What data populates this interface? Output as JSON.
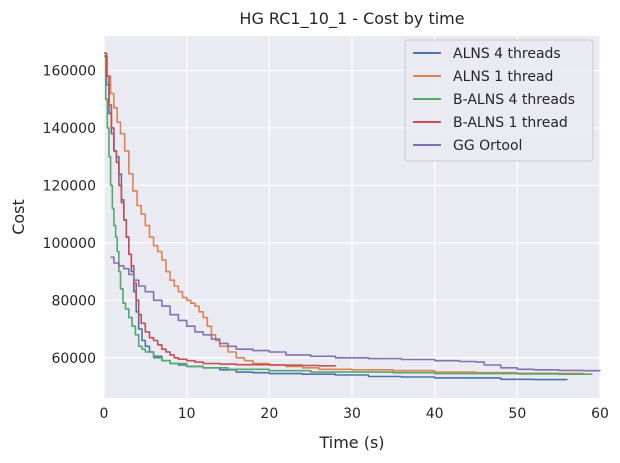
{
  "chart_data": {
    "type": "line",
    "title": "HG RC1_10_1 - Cost by time",
    "xlabel": "Time (s)",
    "ylabel": "Cost",
    "xlim": [
      0,
      60
    ],
    "ylim": [
      46000,
      172000
    ],
    "xticks": [
      0,
      10,
      20,
      30,
      40,
      50,
      60
    ],
    "yticks": [
      60000,
      80000,
      100000,
      120000,
      140000,
      160000
    ],
    "grid": true,
    "legend_position": "top-right",
    "series": [
      {
        "name": "ALNS 4 threads",
        "color": "#4c72b0",
        "points": [
          [
            0,
            165000
          ],
          [
            0.3,
            155000
          ],
          [
            0.6,
            145000
          ],
          [
            0.9,
            138000
          ],
          [
            1.2,
            132000
          ],
          [
            1.5,
            130000
          ],
          [
            1.8,
            124000
          ],
          [
            2.1,
            115000
          ],
          [
            2.4,
            108000
          ],
          [
            2.7,
            102000
          ],
          [
            3.0,
            96000
          ],
          [
            3.3,
            90000
          ],
          [
            3.6,
            83000
          ],
          [
            3.9,
            76000
          ],
          [
            4.2,
            70000
          ],
          [
            4.6,
            66000
          ],
          [
            5.0,
            64000
          ],
          [
            5.5,
            62000
          ],
          [
            6,
            60500
          ],
          [
            7,
            59000
          ],
          [
            8,
            58000
          ],
          [
            9,
            57500
          ],
          [
            10,
            57000
          ],
          [
            12,
            56500
          ],
          [
            14,
            55800
          ],
          [
            16,
            55000
          ],
          [
            18,
            54800
          ],
          [
            20,
            54500
          ],
          [
            24,
            54300
          ],
          [
            28,
            54000
          ],
          [
            32,
            53500
          ],
          [
            36,
            53300
          ],
          [
            40,
            53000
          ],
          [
            44,
            53000
          ],
          [
            48,
            52500
          ],
          [
            52,
            52400
          ],
          [
            56,
            52200
          ]
        ]
      },
      {
        "name": "ALNS 1 thread",
        "color": "#dd8452",
        "points": [
          [
            0,
            165000
          ],
          [
            0.4,
            158000
          ],
          [
            0.8,
            152000
          ],
          [
            1.2,
            147000
          ],
          [
            1.6,
            142000
          ],
          [
            2.0,
            138000
          ],
          [
            2.5,
            132000
          ],
          [
            3.0,
            124000
          ],
          [
            3.5,
            118000
          ],
          [
            4.0,
            113000
          ],
          [
            4.5,
            110000
          ],
          [
            5.0,
            106000
          ],
          [
            5.5,
            102000
          ],
          [
            6.0,
            99000
          ],
          [
            6.5,
            97000
          ],
          [
            7.0,
            94000
          ],
          [
            7.5,
            90000
          ],
          [
            8.0,
            87000
          ],
          [
            8.5,
            85000
          ],
          [
            9.0,
            83000
          ],
          [
            9.5,
            81000
          ],
          [
            10,
            80000
          ],
          [
            10.5,
            79000
          ],
          [
            11,
            78000
          ],
          [
            11.5,
            76000
          ],
          [
            12,
            74000
          ],
          [
            12.5,
            71000
          ],
          [
            13,
            68000
          ],
          [
            13.5,
            66000
          ],
          [
            14,
            64000
          ],
          [
            15,
            62000
          ],
          [
            16,
            60000
          ],
          [
            17,
            59000
          ],
          [
            18,
            58000
          ],
          [
            20,
            57500
          ],
          [
            22,
            57000
          ],
          [
            24,
            56500
          ],
          [
            26,
            56000
          ],
          [
            30,
            55800
          ],
          [
            35,
            55500
          ],
          [
            40,
            55000
          ],
          [
            45,
            54800
          ],
          [
            50,
            54600
          ],
          [
            55,
            54500
          ],
          [
            58,
            54400
          ]
        ]
      },
      {
        "name": "B-ALNS 4 threads",
        "color": "#55a868",
        "points": [
          [
            0,
            165000
          ],
          [
            0.2,
            150000
          ],
          [
            0.4,
            140000
          ],
          [
            0.6,
            130000
          ],
          [
            0.8,
            120000
          ],
          [
            1.0,
            112000
          ],
          [
            1.2,
            106000
          ],
          [
            1.4,
            102000
          ],
          [
            1.6,
            97000
          ],
          [
            1.8,
            90000
          ],
          [
            2.0,
            84000
          ],
          [
            2.3,
            79000
          ],
          [
            2.6,
            77000
          ],
          [
            3.0,
            74000
          ],
          [
            3.4,
            71000
          ],
          [
            3.8,
            68000
          ],
          [
            4.2,
            64000
          ],
          [
            4.6,
            63000
          ],
          [
            5.0,
            62000
          ],
          [
            6,
            60000
          ],
          [
            7,
            59000
          ],
          [
            8,
            58000
          ],
          [
            10,
            57000
          ],
          [
            12,
            56500
          ],
          [
            15,
            56000
          ],
          [
            20,
            55500
          ],
          [
            25,
            55000
          ],
          [
            30,
            55000
          ],
          [
            35,
            54800
          ],
          [
            40,
            54500
          ],
          [
            45,
            54500
          ],
          [
            50,
            54400
          ],
          [
            55,
            54300
          ],
          [
            59,
            54200
          ]
        ]
      },
      {
        "name": "B-ALNS 1 thread",
        "color": "#c44e52",
        "points": [
          [
            0,
            166000
          ],
          [
            0.3,
            158000
          ],
          [
            0.6,
            148000
          ],
          [
            0.9,
            140000
          ],
          [
            1.2,
            132000
          ],
          [
            1.5,
            128000
          ],
          [
            1.8,
            120000
          ],
          [
            2.1,
            114000
          ],
          [
            2.4,
            108000
          ],
          [
            2.7,
            102000
          ],
          [
            3.0,
            96000
          ],
          [
            3.3,
            92000
          ],
          [
            3.6,
            86000
          ],
          [
            3.9,
            80000
          ],
          [
            4.2,
            75000
          ],
          [
            4.5,
            72000
          ],
          [
            5.0,
            69000
          ],
          [
            5.5,
            67000
          ],
          [
            6.0,
            66000
          ],
          [
            6.5,
            64500
          ],
          [
            7,
            63000
          ],
          [
            7.5,
            62000
          ],
          [
            8,
            61000
          ],
          [
            8.5,
            60000
          ],
          [
            9,
            59500
          ],
          [
            10,
            59000
          ],
          [
            11,
            58500
          ],
          [
            12,
            58000
          ],
          [
            14,
            57800
          ],
          [
            16,
            57600
          ],
          [
            20,
            57500
          ],
          [
            22,
            57400
          ],
          [
            24,
            57300
          ],
          [
            26,
            57200
          ],
          [
            28,
            57000
          ]
        ]
      },
      {
        "name": "GG Ortool",
        "color": "#8172b3",
        "points": [
          [
            0.8,
            95000
          ],
          [
            1.2,
            93000
          ],
          [
            1.8,
            92000
          ],
          [
            2.4,
            91000
          ],
          [
            3.0,
            89000
          ],
          [
            3.6,
            87000
          ],
          [
            4.2,
            85000
          ],
          [
            5.0,
            83000
          ],
          [
            6.0,
            80000
          ],
          [
            7.0,
            78000
          ],
          [
            8.0,
            75000
          ],
          [
            9.0,
            73000
          ],
          [
            10,
            71000
          ],
          [
            11,
            69000
          ],
          [
            12,
            68000
          ],
          [
            13,
            66500
          ],
          [
            14,
            65000
          ],
          [
            15,
            64000
          ],
          [
            16,
            63000
          ],
          [
            18,
            62500
          ],
          [
            20,
            62000
          ],
          [
            22,
            61000
          ],
          [
            25,
            60500
          ],
          [
            28,
            60000
          ],
          [
            32,
            59700
          ],
          [
            36,
            59400
          ],
          [
            40,
            59000
          ],
          [
            43,
            58700
          ],
          [
            45,
            58500
          ],
          [
            46,
            57500
          ],
          [
            48,
            56500
          ],
          [
            50,
            56000
          ],
          [
            52,
            55800
          ],
          [
            55,
            55600
          ],
          [
            58,
            55500
          ],
          [
            60,
            55400
          ]
        ]
      }
    ]
  }
}
